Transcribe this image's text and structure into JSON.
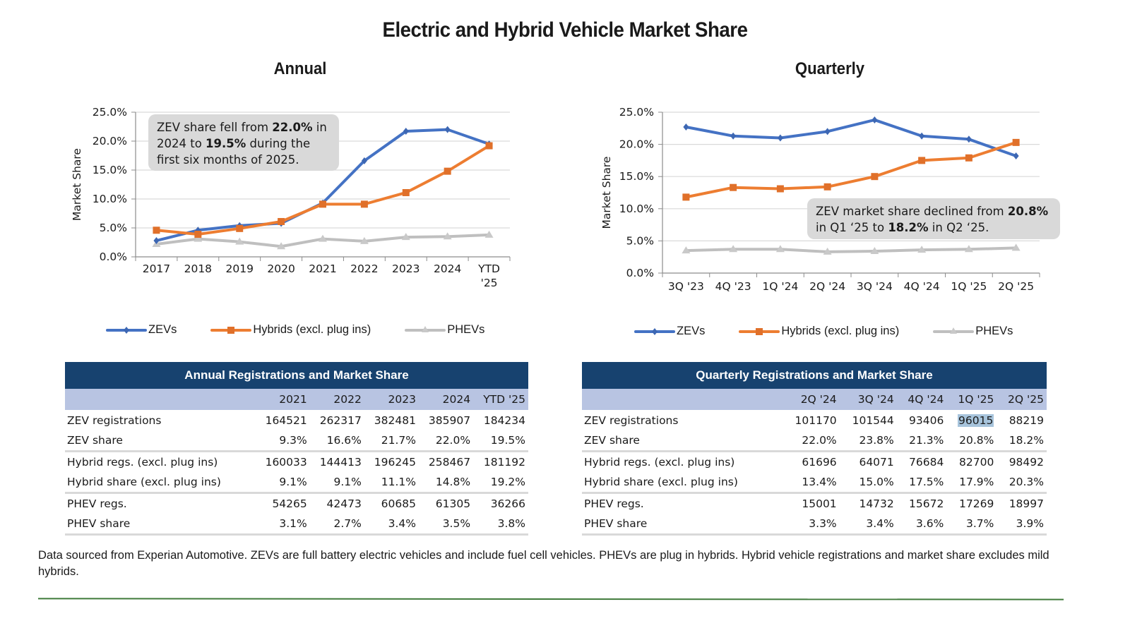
{
  "page": {
    "title": "Electric and Hybrid Vehicle Market Share",
    "footnote": "Data sourced from Experian Automotive. ZEVs are full battery electric vehicles and include fuel cell vehicles. PHEVs are plug in hybrids. Hybrid vehicle registrations and market share excludes mild hybrids."
  },
  "colors": {
    "zev": "#4472c4",
    "hybrid": "#ed7d31",
    "phev": "#bfbfbf",
    "table_header": "#17426f",
    "table_subheader": "#b8c4e2",
    "callout_bg": "#d9d9d9",
    "rule": "#3f7a3a"
  },
  "legend": {
    "zev": "ZEVs",
    "hybrid": "Hybrids (excl. plug ins)",
    "phev": "PHEVs"
  },
  "annual_callout": {
    "t1": "ZEV share fell from ",
    "b1": "22.0%",
    "t2": " in 2024 to ",
    "b2": "19.5%",
    "t3": " during the first six months of 2025."
  },
  "quarterly_callout": {
    "t1": "ZEV market share declined from ",
    "b1": "20.8%",
    "t2": " in Q1 ‘25 to ",
    "b2": "18.2%",
    "t3": " in Q2 ‘25."
  },
  "chart_data": [
    {
      "id": "annual",
      "type": "line",
      "title": "Annual",
      "xlabel": "",
      "ylabel": "Market Share",
      "ylim": [
        0,
        25
      ],
      "yticks": [
        0,
        5,
        10,
        15,
        20,
        25
      ],
      "ytick_labels": [
        "0.0%",
        "5.0%",
        "10.0%",
        "15.0%",
        "20.0%",
        "25.0%"
      ],
      "grid": true,
      "legend_position": "bottom",
      "categories": [
        "2017",
        "2018",
        "2019",
        "2020",
        "2021",
        "2022",
        "2023",
        "2024",
        "YTD\n'25"
      ],
      "series": [
        {
          "key": "zev",
          "name": "ZEVs",
          "marker": "diamond",
          "values": [
            2.8,
            4.6,
            5.4,
            5.8,
            9.3,
            16.6,
            21.7,
            22.0,
            19.5
          ]
        },
        {
          "key": "hybrid",
          "name": "Hybrids (excl. plug ins)",
          "marker": "square",
          "values": [
            4.6,
            3.9,
            4.9,
            6.1,
            9.1,
            9.1,
            11.1,
            14.8,
            19.2
          ]
        },
        {
          "key": "phev",
          "name": "PHEVs",
          "marker": "triangle",
          "values": [
            2.2,
            3.1,
            2.6,
            1.8,
            3.1,
            2.7,
            3.4,
            3.5,
            3.8
          ]
        }
      ]
    },
    {
      "id": "quarterly",
      "type": "line",
      "title": "Quarterly",
      "xlabel": "",
      "ylabel": "Market Share",
      "ylim": [
        0,
        25
      ],
      "yticks": [
        0,
        5,
        10,
        15,
        20,
        25
      ],
      "ytick_labels": [
        "0.0%",
        "5.0%",
        "10.0%",
        "15.0%",
        "20.0%",
        "25.0%"
      ],
      "grid": true,
      "legend_position": "bottom",
      "categories": [
        "3Q '23",
        "4Q '23",
        "1Q '24",
        "2Q '24",
        "3Q '24",
        "4Q '24",
        "1Q '25",
        "2Q '25"
      ],
      "series": [
        {
          "key": "zev",
          "name": "ZEVs",
          "marker": "diamond",
          "values": [
            22.7,
            21.3,
            21.0,
            22.0,
            23.8,
            21.3,
            20.8,
            18.2
          ]
        },
        {
          "key": "hybrid",
          "name": "Hybrids (excl. plug ins)",
          "marker": "square",
          "values": [
            11.8,
            13.3,
            13.1,
            13.4,
            15.0,
            17.5,
            17.9,
            20.3
          ]
        },
        {
          "key": "phev",
          "name": "PHEVs",
          "marker": "triangle",
          "values": [
            3.5,
            3.7,
            3.7,
            3.3,
            3.4,
            3.6,
            3.7,
            3.9
          ]
        }
      ]
    }
  ],
  "tables": {
    "annual": {
      "title": "Annual Registrations and Market Share",
      "columns": [
        "2021",
        "2022",
        "2023",
        "2024",
        "YTD '25"
      ],
      "rows": [
        {
          "label": "ZEV registrations",
          "values": [
            "164521",
            "262317",
            "382481",
            "385907",
            "184234"
          ]
        },
        {
          "label": "ZEV share",
          "values": [
            "9.3%",
            "16.6%",
            "21.7%",
            "22.0%",
            "19.5%"
          ]
        },
        {
          "label": "Hybrid regs. (excl. plug ins)",
          "values": [
            "160033",
            "144413",
            "196245",
            "258467",
            "181192"
          ]
        },
        {
          "label": "Hybrid share (excl. plug ins)",
          "values": [
            "9.1%",
            "9.1%",
            "11.1%",
            "14.8%",
            "19.2%"
          ]
        },
        {
          "label": "PHEV regs.",
          "values": [
            "54265",
            "42473",
            "60685",
            "61305",
            "36266"
          ]
        },
        {
          "label": "PHEV share",
          "values": [
            "3.1%",
            "2.7%",
            "3.4%",
            "3.5%",
            "3.8%"
          ]
        }
      ]
    },
    "quarterly": {
      "title": "Quarterly Registrations and Market Share",
      "columns": [
        "2Q '24",
        "3Q '24",
        "4Q '24",
        "1Q '25",
        "2Q '25"
      ],
      "rows": [
        {
          "label": "ZEV registrations",
          "values": [
            "101170",
            "101544",
            "93406",
            "96015",
            "88219"
          ]
        },
        {
          "label": "ZEV share",
          "values": [
            "22.0%",
            "23.8%",
            "21.3%",
            "20.8%",
            "18.2%"
          ]
        },
        {
          "label": "Hybrid regs. (excl. plug ins)",
          "values": [
            "61696",
            "64071",
            "76684",
            "82700",
            "98492"
          ]
        },
        {
          "label": "Hybrid share (excl. plug ins)",
          "values": [
            "13.4%",
            "15.0%",
            "17.5%",
            "17.9%",
            "20.3%"
          ]
        },
        {
          "label": "PHEV regs.",
          "values": [
            "15001",
            "14732",
            "15672",
            "17269",
            "18997"
          ]
        },
        {
          "label": "PHEV share",
          "values": [
            "3.3%",
            "3.4%",
            "3.6%",
            "3.7%",
            "3.9%"
          ]
        }
      ]
    }
  }
}
